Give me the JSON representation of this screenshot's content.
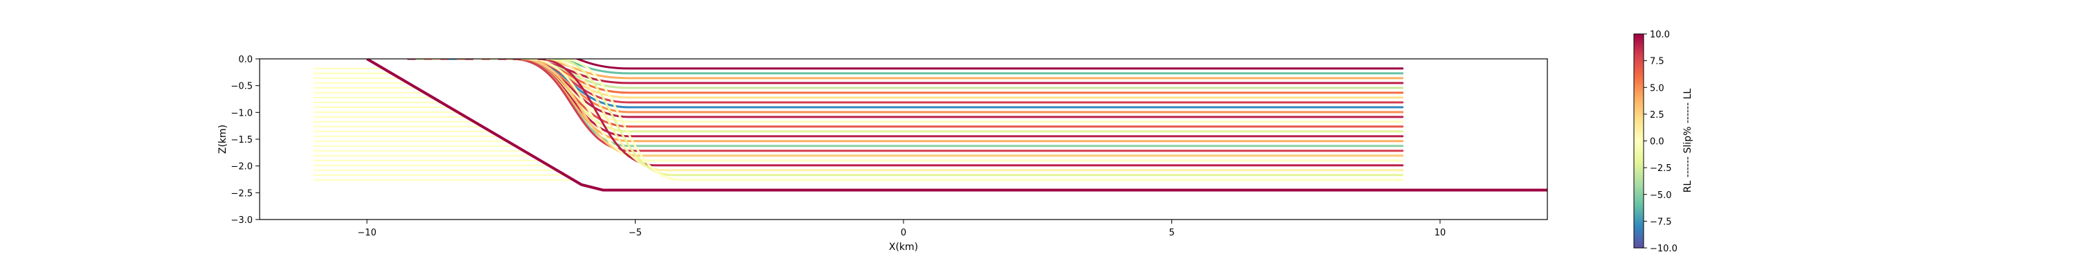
{
  "chart_data": {
    "type": "line",
    "xlabel": "X(km)",
    "ylabel": "Z(km)",
    "xlim": [
      -12,
      12
    ],
    "ylim": [
      -3.0,
      0.0
    ],
    "x_ticks": [
      -10,
      -5,
      0,
      5,
      10
    ],
    "x_tick_labels": [
      "−10",
      "−5",
      "0",
      "5",
      "10"
    ],
    "y_ticks": [
      0.0,
      -0.5,
      -1.0,
      -1.5,
      -2.0,
      -2.5,
      -3.0
    ],
    "y_tick_labels": [
      "0.0",
      "−0.5",
      "−1.0",
      "−1.5",
      "−2.0",
      "−2.5",
      "−3.0"
    ],
    "grid": false,
    "fault": {
      "color": "#9e0142",
      "x": [
        -10.0,
        -6.0,
        -5.6,
        -5.0,
        12.0
      ],
      "z": [
        0.0,
        -2.35,
        -2.45,
        -2.45,
        -2.45
      ]
    },
    "layers": {
      "count": 24,
      "top_z": -0.18,
      "bottom_z": -2.26,
      "left_x": -11.0,
      "right_x": 9.3,
      "bend_x": -5.8,
      "fault_x_at_surface": -10.0,
      "fault_dip_dx_per_km": 1.7,
      "slip_percent": [
        10,
        -6,
        4,
        9,
        -3,
        6,
        2,
        8,
        -8,
        5,
        9,
        0,
        7,
        -2,
        9,
        4,
        -5,
        8,
        3,
        0,
        9,
        1,
        -2,
        0
      ]
    },
    "colorbar": {
      "label": "RL ------ Slip% ------ LL",
      "min": -10.0,
      "max": 10.0,
      "colormap": "Spectral_r",
      "stops": [
        "#5e4fa2",
        "#3288bd",
        "#66c2a5",
        "#abdda4",
        "#e6f598",
        "#ffffbf",
        "#fee08b",
        "#fdae61",
        "#f46d43",
        "#d53e4f",
        "#9e0142"
      ],
      "ticks": [
        10.0,
        7.5,
        5.0,
        2.5,
        0.0,
        -2.5,
        -5.0,
        -7.5,
        -10.0
      ],
      "tick_labels": [
        "10.0",
        "7.5",
        "5.0",
        "2.5",
        "0.0",
        "−2.5",
        "−5.0",
        "−7.5",
        "−10.0"
      ]
    }
  }
}
